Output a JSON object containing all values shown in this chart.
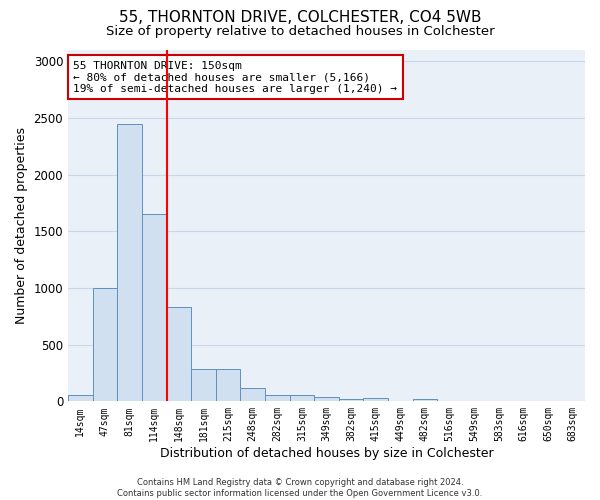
{
  "title1": "55, THORNTON DRIVE, COLCHESTER, CO4 5WB",
  "title2": "Size of property relative to detached houses in Colchester",
  "xlabel": "Distribution of detached houses by size in Colchester",
  "ylabel": "Number of detached properties",
  "categories": [
    "14sqm",
    "47sqm",
    "81sqm",
    "114sqm",
    "148sqm",
    "181sqm",
    "215sqm",
    "248sqm",
    "282sqm",
    "315sqm",
    "349sqm",
    "382sqm",
    "415sqm",
    "449sqm",
    "482sqm",
    "516sqm",
    "549sqm",
    "583sqm",
    "616sqm",
    "650sqm",
    "683sqm"
  ],
  "values": [
    60,
    1000,
    2450,
    1650,
    830,
    285,
    285,
    120,
    55,
    55,
    35,
    25,
    30,
    0,
    25,
    0,
    0,
    0,
    0,
    0,
    0
  ],
  "bar_color": "#d0e0f0",
  "bar_edge_color": "#6090c0",
  "red_line_x": 3.5,
  "annotation_line1": "55 THORNTON DRIVE: 150sqm",
  "annotation_line2": "← 80% of detached houses are smaller (5,166)",
  "annotation_line3": "19% of semi-detached houses are larger (1,240) →",
  "annotation_box_color": "#ffffff",
  "annotation_box_edge_color": "#cc0000",
  "ylim": [
    0,
    3100
  ],
  "yticks": [
    0,
    500,
    1000,
    1500,
    2000,
    2500,
    3000
  ],
  "grid_color": "#c8d8e8",
  "background_color": "#eaf0f8",
  "footer_line1": "Contains HM Land Registry data © Crown copyright and database right 2024.",
  "footer_line2": "Contains public sector information licensed under the Open Government Licence v3.0.",
  "title1_fontsize": 11,
  "title2_fontsize": 9.5,
  "xlabel_fontsize": 9,
  "ylabel_fontsize": 9,
  "tick_fontsize": 8.5,
  "xtick_fontsize": 7
}
